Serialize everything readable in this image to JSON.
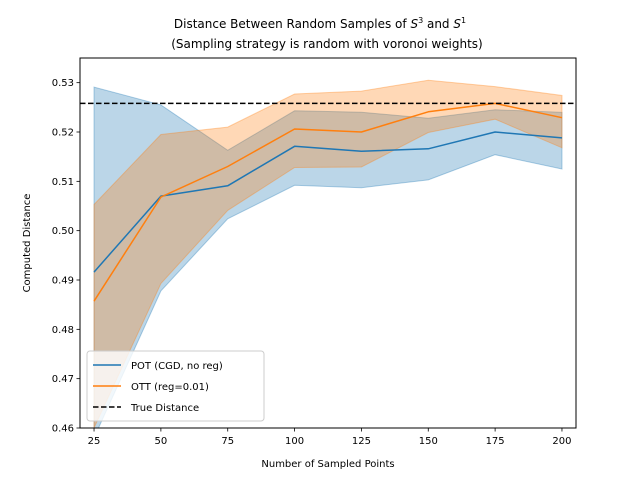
{
  "chart_data": {
    "type": "line",
    "title_line1_prefix": "Distance Between Random Samples of ",
    "title_line1_sym1": "S",
    "title_line1_sup1": "3",
    "title_line1_mid": " and ",
    "title_line1_sym2": "S",
    "title_line1_sup2": "1",
    "title_line2": "(Sampling strategy is random with voronoi weights)",
    "xlabel": "Number of Sampled Points",
    "ylabel": "Computed Distance",
    "x": [
      25,
      50,
      75,
      100,
      125,
      150,
      175,
      200
    ],
    "xlim": [
      19.75,
      205.25
    ],
    "ylim": [
      0.46,
      0.535
    ],
    "xticks": [
      25,
      50,
      75,
      100,
      125,
      150,
      175,
      200
    ],
    "yticks": [
      0.46,
      0.47,
      0.48,
      0.49,
      0.5,
      0.51,
      0.52,
      0.53
    ],
    "ytick_labels": [
      "0.46",
      "0.47",
      "0.48",
      "0.49",
      "0.50",
      "0.51",
      "0.52",
      "0.53"
    ],
    "series": [
      {
        "name": "POT (CGD, no reg)",
        "color": "#1f77b4",
        "values": [
          0.4916,
          0.507,
          0.5091,
          0.5171,
          0.5161,
          0.5166,
          0.52,
          0.5188
        ],
        "lower": [
          0.458,
          0.4878,
          0.5024,
          0.5092,
          0.5087,
          0.5103,
          0.5154,
          0.5125
        ],
        "upper": [
          0.5291,
          0.5255,
          0.5163,
          0.5243,
          0.524,
          0.5228,
          0.5245,
          0.524
        ]
      },
      {
        "name": "OTT (reg=0.01)",
        "color": "#ff7f0e",
        "values": [
          0.4857,
          0.5068,
          0.513,
          0.5206,
          0.52,
          0.5241,
          0.5258,
          0.5229
        ],
        "lower": [
          0.46,
          0.4893,
          0.5041,
          0.5128,
          0.5129,
          0.5199,
          0.5226,
          0.5168
        ],
        "upper": [
          0.5053,
          0.5195,
          0.521,
          0.5277,
          0.5283,
          0.5305,
          0.5292,
          0.5274
        ]
      }
    ],
    "reference_line": {
      "name": "True Distance",
      "value": 0.5258,
      "color": "#000000",
      "style": "dashed"
    },
    "legend_placement": "lower-left",
    "grid": false
  }
}
